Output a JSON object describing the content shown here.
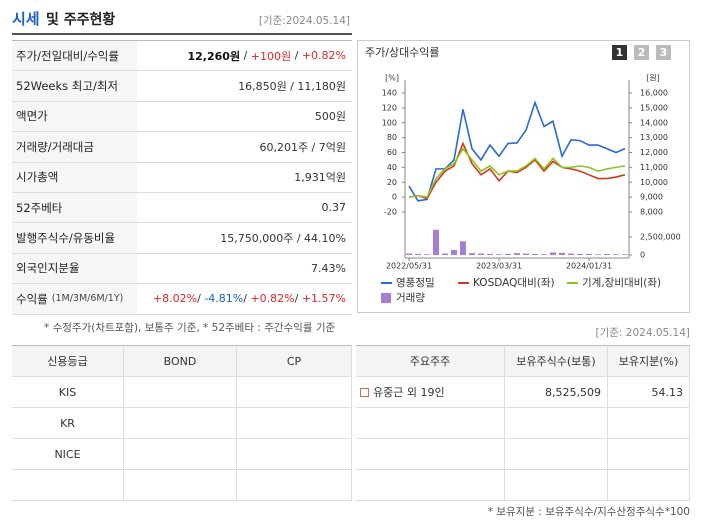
{
  "header": {
    "title": "시세",
    "subtitle": "및 주주현황",
    "date": "[기준:2024.05.14]"
  },
  "summary": {
    "rows": [
      {
        "label": "주가/전일대비/수익률",
        "parts": [
          {
            "text": "12,260원",
            "tone": "strong"
          },
          {
            "text": " / ",
            "tone": "plain"
          },
          {
            "text": "+100원",
            "tone": "up"
          },
          {
            "text": " / ",
            "tone": "plain"
          },
          {
            "text": "+0.82%",
            "tone": "up"
          }
        ]
      },
      {
        "label": "52Weeks 최고/최저",
        "parts": [
          {
            "text": "16,850원 / 11,180원",
            "tone": "plain"
          }
        ]
      },
      {
        "label": "액면가",
        "parts": [
          {
            "text": "500원",
            "tone": "plain"
          }
        ]
      },
      {
        "label": "거래량/거래대금",
        "parts": [
          {
            "text": "60,201주 / 7억원",
            "tone": "plain"
          }
        ]
      },
      {
        "label": "시가총액",
        "parts": [
          {
            "text": "1,931억원",
            "tone": "plain"
          }
        ]
      },
      {
        "label": "52주베타",
        "parts": [
          {
            "text": "0.37",
            "tone": "plain"
          }
        ]
      },
      {
        "label": "발행주식수/유동비율",
        "parts": [
          {
            "text": "15,750,000주 / 44.10%",
            "tone": "plain"
          }
        ]
      },
      {
        "label": "외국인지분율",
        "parts": [
          {
            "text": "7.43%",
            "tone": "plain"
          }
        ]
      },
      {
        "label": "수익률",
        "label_note": "(1M/3M/6M/1Y)",
        "parts": [
          {
            "text": "+8.02%",
            "tone": "up"
          },
          {
            "text": "/ ",
            "tone": "plain"
          },
          {
            "text": "-4.81%",
            "tone": "down"
          },
          {
            "text": "/ ",
            "tone": "plain"
          },
          {
            "text": "+0.82%",
            "tone": "up"
          },
          {
            "text": "/ ",
            "tone": "plain"
          },
          {
            "text": "+1.57%",
            "tone": "up"
          }
        ]
      }
    ],
    "note": "* 수정주가(차트포함), 보통주 기준, * 52주베타 : 주간수익률 기준",
    "date": "[기준: 2024.05.14]"
  },
  "chart_data": {
    "type": "line",
    "title": "주가/상대수익률",
    "tabs": [
      "1",
      "2",
      "3"
    ],
    "categories": [
      "2022/05/31",
      null,
      null,
      null,
      null,
      null,
      null,
      null,
      null,
      null,
      "2023/03/31",
      null,
      null,
      null,
      null,
      null,
      null,
      null,
      null,
      null,
      "2024/01/31",
      null,
      null,
      null,
      null
    ],
    "y_unit": "[%]",
    "ylim": [
      -20,
      140
    ],
    "yticks": [
      -20,
      0,
      20,
      40,
      60,
      80,
      100,
      120,
      140
    ],
    "y2_unit": "[원]",
    "y2lim": [
      8000,
      16000
    ],
    "y2ticks": [
      {
        "value": 8000,
        "label": "8,000"
      },
      {
        "value": 9000,
        "label": "9,000"
      },
      {
        "value": 10000,
        "label": "10,000"
      },
      {
        "value": 11000,
        "label": "11,000"
      },
      {
        "value": 12000,
        "label": "12,000"
      },
      {
        "value": 13000,
        "label": "13,000"
      },
      {
        "value": 14000,
        "label": "14,000"
      },
      {
        "value": 15000,
        "label": "15,000"
      },
      {
        "value": 16000,
        "label": "16,000"
      }
    ],
    "y3lim": [
      0,
      2500000
    ],
    "y3ticks": [
      0,
      {
        "value": 2500000,
        "label": "2,500,000"
      }
    ],
    "grid": false,
    "series": [
      {
        "name": "영풍정밀",
        "color": "#2a6ad6",
        "axis": "y2",
        "values": [
          9750,
          8750,
          8850,
          10900,
          10900,
          11500,
          14900,
          12250,
          11500,
          12500,
          11750,
          12600,
          12650,
          13500,
          15350,
          13750,
          14100,
          11750,
          12850,
          12800,
          12500,
          12500,
          12250,
          12000,
          12260
        ]
      },
      {
        "name": "KOSDAQ대비(좌)",
        "color": "#d33a1d",
        "values": [
          0,
          2,
          -2,
          20,
          35,
          42,
          72,
          45,
          30,
          38,
          22,
          35,
          33,
          40,
          50,
          35,
          48,
          40,
          38,
          35,
          30,
          25,
          25,
          27,
          30
        ]
      },
      {
        "name": "기계,장비대비(좌)",
        "color": "#8cc41b",
        "values": [
          0,
          2,
          0,
          25,
          38,
          45,
          65,
          50,
          35,
          42,
          30,
          35,
          35,
          42,
          52,
          38,
          52,
          40,
          40,
          42,
          40,
          35,
          38,
          40,
          42
        ]
      },
      {
        "name": "거래량",
        "color": "#a57fd6",
        "type": "bar",
        "axis": "y3",
        "values": [
          200000,
          150000,
          100000,
          3500000,
          200000,
          700000,
          1900000,
          250000,
          200000,
          150000,
          100000,
          150000,
          250000,
          200000,
          150000,
          100000,
          350000,
          300000,
          200000,
          150000,
          150000,
          100000,
          150000,
          100000,
          100000
        ]
      }
    ]
  },
  "credit_table": {
    "columns": [
      "신용등급",
      "BOND",
      "CP"
    ],
    "rows": [
      [
        "KIS"
      ],
      [
        "KR"
      ],
      [
        "NICE"
      ]
    ]
  },
  "holders_table": {
    "columns": [
      "주요주주",
      "보유주식수(보통)",
      "보유지분(%)"
    ],
    "rows": [
      [
        "유중근 외 19인",
        "8,525,509",
        "54.13"
      ]
    ],
    "note": "* 보유지분 : 보유주식수/지수산정주식수*100"
  }
}
